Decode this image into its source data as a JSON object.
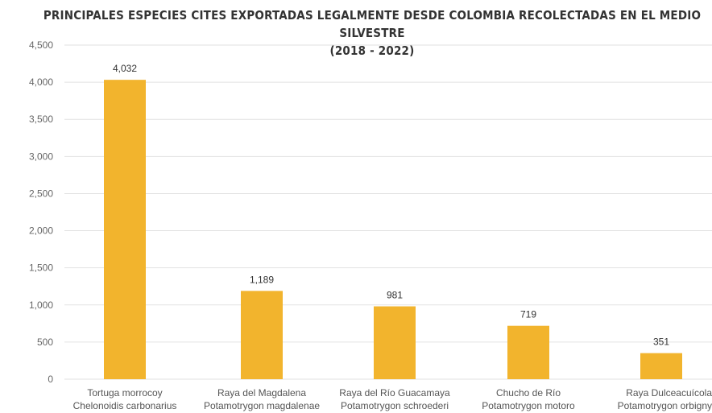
{
  "chart_data": {
    "type": "bar",
    "title": "PRINCIPALES ESPECIES CITES EXPORTADAS LEGALMENTE DESDE COLOMBIA RECOLECTADAS EN EL MEDIO SILVESTRE",
    "subtitle": "(2018 - 2022)",
    "categories": [
      [
        "Tortuga morrocoy",
        "Chelonoidis carbonarius"
      ],
      [
        "Raya del Magdalena",
        "Potamotrygon magdalenae"
      ],
      [
        "Raya del Río Guacamaya",
        "Potamotrygon schroederi"
      ],
      [
        "Chucho de Río",
        "Potamotrygon motoro"
      ],
      [
        "Raya Dulceacuícola",
        "Potamotrygon orbigny"
      ]
    ],
    "values": [
      4032,
      1189,
      981,
      719,
      351
    ],
    "data_labels": [
      "4,032",
      "1,189",
      "981",
      "719",
      "351"
    ],
    "yticks": [
      "0",
      "500",
      "1,000",
      "1,500",
      "2,000",
      "2,500",
      "3,000",
      "3,500",
      "4,000",
      "4,500"
    ],
    "ylim": [
      0,
      4500
    ],
    "xlabel": "",
    "ylabel": "",
    "grid": true,
    "legend": "none",
    "colors": {
      "bar": "#F2B42D",
      "grid": "#e2e2e2"
    }
  }
}
